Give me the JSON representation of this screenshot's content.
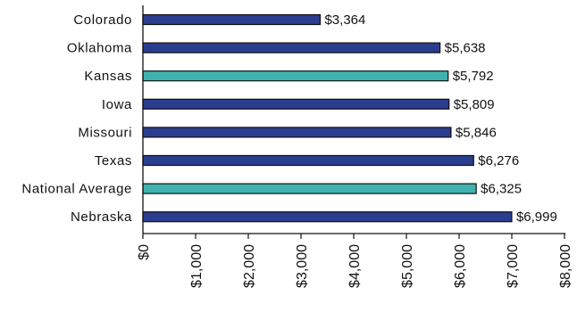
{
  "chart_data": {
    "type": "bar",
    "orientation": "horizontal",
    "categories": [
      "Colorado",
      "Oklahoma",
      "Kansas",
      "Iowa",
      "Missouri",
      "Texas",
      "National Average",
      "Nebraska"
    ],
    "values": [
      3364,
      5638,
      5792,
      5809,
      5846,
      6276,
      6325,
      6999
    ],
    "value_labels": [
      "$3,364",
      "$5,638",
      "$5,792",
      "$5,809",
      "$5,846",
      "$6,276",
      "$6,325",
      "$6,999"
    ],
    "highlight_categories": [
      "Kansas",
      "National Average"
    ],
    "colors": {
      "default_bar": "#2a3d8f",
      "highlight_bar": "#3fb3b0",
      "bar_outline": "#111111",
      "axis": "#111111"
    },
    "xlim": [
      0,
      8000
    ],
    "x_ticks": [
      0,
      1000,
      2000,
      3000,
      4000,
      5000,
      6000,
      7000,
      8000
    ],
    "x_tick_labels": [
      "$0",
      "$1,000",
      "$2,000",
      "$3,000",
      "$4,000",
      "$5,000",
      "$6,000",
      "$7,000",
      "$8,000"
    ],
    "title": "",
    "xlabel": "",
    "ylabel": "",
    "grid": false,
    "legend": "none"
  }
}
